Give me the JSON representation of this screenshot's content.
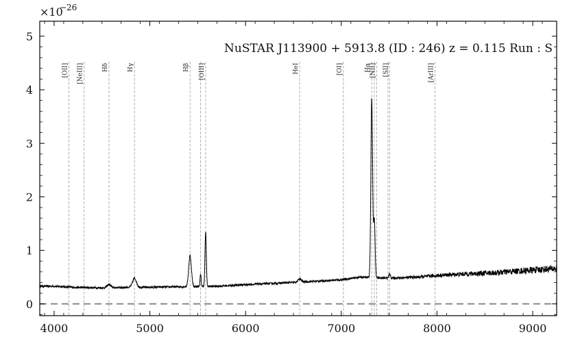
{
  "chart_data": {
    "type": "line",
    "title": "NuSTAR J113900 + 5913.8 (ID : 246)   z = 0.115   Run : S",
    "multiplier": {
      "base": "×10",
      "exponent": "−26"
    },
    "xlabel": "",
    "ylabel": "",
    "xlim": [
      3850,
      9250
    ],
    "ylim": [
      -0.22,
      5.28
    ],
    "xticks": [
      4000,
      5000,
      6000,
      7000,
      8000,
      9000
    ],
    "yticks": [
      0,
      1,
      2,
      3,
      4,
      5
    ],
    "grid": false,
    "zero_line": {
      "y": 0,
      "style": "dashed",
      "color": "#888888"
    },
    "line_color": "#000000",
    "marker_color": "#aaaaaa",
    "emission_lines": [
      {
        "label": "[OII]",
        "x": 4155
      },
      {
        "label": "[NeIII]",
        "x": 4313
      },
      {
        "label": "Hδ",
        "x": 4573
      },
      {
        "label": "Hγ",
        "x": 4840
      },
      {
        "label": "Hβ",
        "x": 5420
      },
      {
        "label": "",
        "x": 5530
      },
      {
        "label": "[OIII]",
        "x": 5583
      },
      {
        "label": "HeI",
        "x": 6565
      },
      {
        "label": "[OI]",
        "x": 7022
      },
      {
        "label": "Hα",
        "x": 7318
      },
      {
        "label": "",
        "x": 7345
      },
      {
        "label": "[NII]",
        "x": 7370
      },
      {
        "label": "",
        "x": 7488
      },
      {
        "label": "[SII]",
        "x": 7505
      },
      {
        "label": "[ArIII]",
        "x": 7980
      }
    ],
    "continuum": {
      "x": [
        3850,
        4000,
        4200,
        4500,
        4800,
        5000,
        5300,
        5700,
        6000,
        6500,
        7000,
        7200,
        7500,
        7800,
        8000,
        8300,
        8600,
        8900,
        9250
      ],
      "y": [
        0.33,
        0.33,
        0.31,
        0.3,
        0.31,
        0.31,
        0.32,
        0.33,
        0.36,
        0.4,
        0.45,
        0.5,
        0.48,
        0.5,
        0.53,
        0.56,
        0.58,
        0.62,
        0.66
      ]
    },
    "lines_in_spectrum": [
      {
        "x": 4573,
        "amp": 0.06,
        "w": 18
      },
      {
        "x": 4840,
        "amp": 0.17,
        "w": 20
      },
      {
        "x": 5420,
        "amp": 0.58,
        "w": 14
      },
      {
        "x": 5530,
        "amp": 0.22,
        "w": 6
      },
      {
        "x": 5583,
        "amp": 1.02,
        "w": 7
      },
      {
        "x": 6565,
        "amp": 0.06,
        "w": 16
      },
      {
        "x": 7318,
        "amp": 3.35,
        "w": 9
      },
      {
        "x": 7345,
        "amp": 1.1,
        "w": 8
      },
      {
        "x": 7505,
        "amp": 0.08,
        "w": 8
      }
    ]
  }
}
